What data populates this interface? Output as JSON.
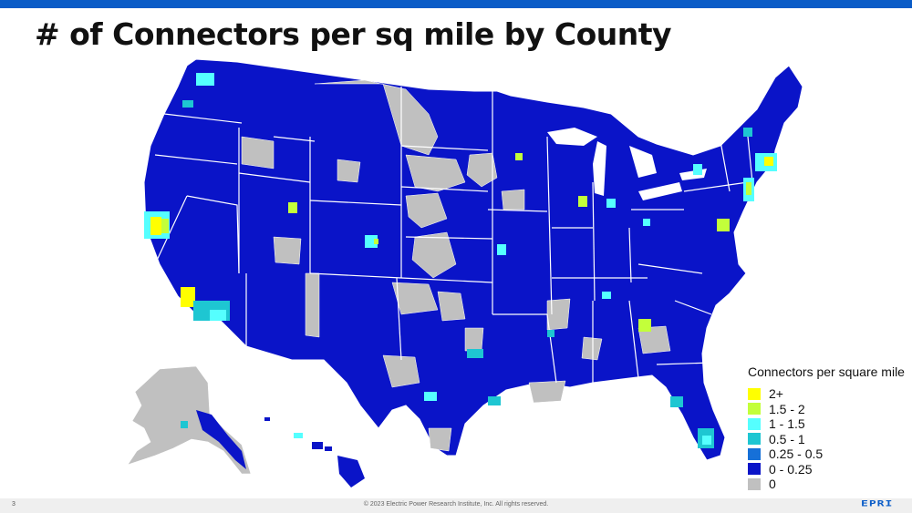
{
  "title": "# of Connectors per sq mile by County",
  "legend": {
    "title": "Connectors per square mile",
    "items": [
      {
        "label": "2+",
        "color": "#ffff00"
      },
      {
        "label": "1.5 - 2",
        "color": "#c3ff3a"
      },
      {
        "label": "1 - 1.5",
        "color": "#55ffff"
      },
      {
        "label": "0.5 - 1",
        "color": "#1ec6d2"
      },
      {
        "label": "0.25 - 0.5",
        "color": "#1670d8"
      },
      {
        "label": "0 - 0.25",
        "color": "#0a14c8"
      },
      {
        "label": "0",
        "color": "#c0c0c0"
      }
    ]
  },
  "footer": {
    "page_number": "3",
    "copyright": "© 2023 Electric Power Research Institute, Inc. All rights reserved.",
    "logo": "EPRI"
  },
  "colors": {
    "header_bar": "#0a5cc7",
    "ocean": "#ffffff",
    "state_border": "#ffffff"
  }
}
